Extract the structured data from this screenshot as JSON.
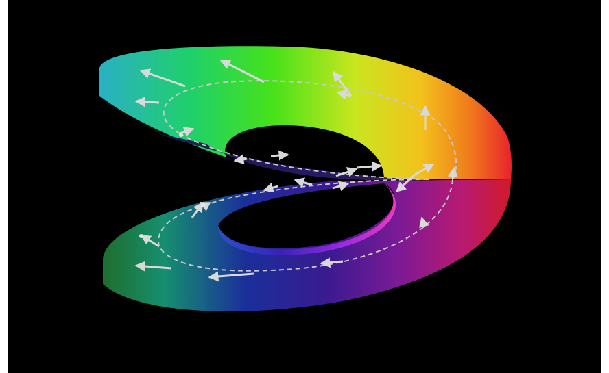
{
  "figure": {
    "subject": "",
    "background_color": "#000000",
    "frame_color": "#ffffff"
  },
  "surface": {
    "upper_sheet_hues": [
      "#2ab0c4",
      "#1fd06a",
      "#46e21a",
      "#c9e61f",
      "#f2c21c",
      "#f07a1c",
      "#e8222c"
    ],
    "lower_sheet_hues": [
      "#1f6e2e",
      "#168f6f",
      "#1a2f9a",
      "#2a1a8e",
      "#5b1a96",
      "#9a1a8e",
      "#c41a5e",
      "#d01a2a"
    ],
    "inner_rim_hues": [
      "#3a22a8",
      "#5a2ad6",
      "#b22ae6",
      "#f03ab8"
    ]
  },
  "path": {
    "style": "dashed",
    "color": "#c8c8c8"
  },
  "vectors": {
    "color": "#d9d9d9",
    "count": 24
  }
}
